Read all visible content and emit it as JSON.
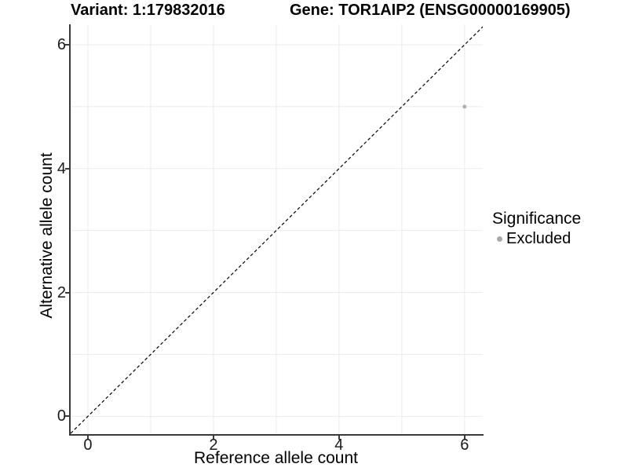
{
  "titles": {
    "left": "Variant: 1:179832016",
    "right": "Gene: TOR1AIP2 (ENSG00000169905)"
  },
  "chart_data": {
    "type": "scatter",
    "title": "Variant: 1:179832016 / Gene: TOR1AIP2 (ENSG00000169905)",
    "xlabel": "Reference allele count",
    "ylabel": "Alternative allele count",
    "xlim": [
      -0.3,
      6.29
    ],
    "ylim": [
      -0.3,
      6.33
    ],
    "x_ticks": [
      0,
      2,
      4,
      6
    ],
    "y_ticks": [
      0,
      2,
      4,
      6
    ],
    "x_gridlines": [
      0,
      1,
      2,
      3,
      4,
      5,
      6
    ],
    "y_gridlines": [
      0,
      1,
      2,
      3,
      4,
      5,
      6
    ],
    "points": [
      {
        "x": 6,
        "y": 5,
        "series": "Excluded"
      }
    ],
    "identity_line": {
      "style": "dashed",
      "from": -0.4,
      "to": 6.5,
      "dash": "4 3"
    },
    "legend": {
      "title": "Significance",
      "position": "right",
      "entries": [
        {
          "label": "Excluded",
          "color": "#a9a9a9"
        }
      ]
    },
    "grid": true,
    "colors": {
      "point": "#b0b0b0",
      "grid": "#ebebeb",
      "axis": "#3a3a3a",
      "identity_line": "#000000"
    }
  }
}
